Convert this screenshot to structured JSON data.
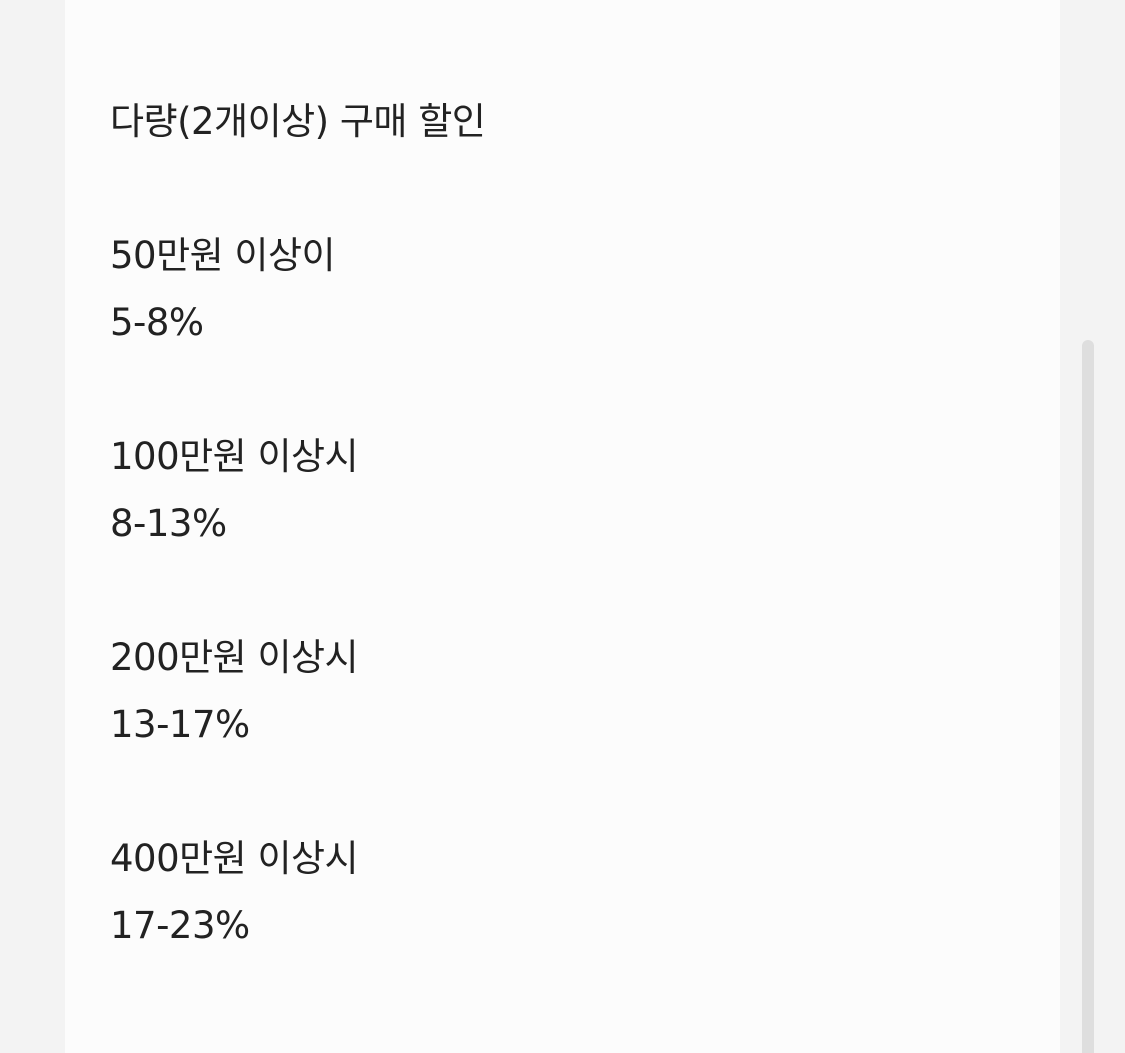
{
  "post": {
    "title": "다량(2개이상) 구매 할인",
    "tiers": [
      {
        "threshold": "50만원 이상이",
        "discount": "5-8%"
      },
      {
        "threshold": "100만원 이상시",
        "discount": "8-13%"
      },
      {
        "threshold": "200만원 이상시",
        "discount": "13-17%"
      },
      {
        "threshold": "400만원 이상시",
        "discount": "17-23%"
      }
    ]
  }
}
